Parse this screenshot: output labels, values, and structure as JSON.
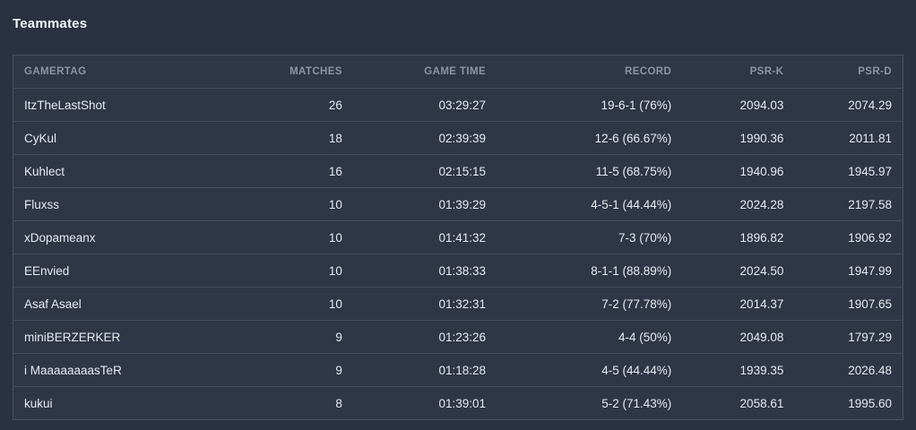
{
  "page": {
    "title": "Teammates"
  },
  "colors": {
    "page_background": "#2a3140",
    "table_background": "#2f3646",
    "table_border": "#4a5365",
    "row_divider": "#454e60",
    "header_text": "#8b95a7",
    "cell_text": "#e7eaef",
    "title_text": "#f4f6f8"
  },
  "table": {
    "columns": [
      {
        "key": "gamertag",
        "label": "GAMERTAG",
        "align": "left"
      },
      {
        "key": "matches",
        "label": "MATCHES",
        "align": "right"
      },
      {
        "key": "game_time",
        "label": "GAME TIME",
        "align": "right"
      },
      {
        "key": "record",
        "label": "RECORD",
        "align": "right"
      },
      {
        "key": "psr_k",
        "label": "PSR-K",
        "align": "right"
      },
      {
        "key": "psr_d",
        "label": "PSR-D",
        "align": "right"
      }
    ],
    "rows": [
      {
        "gamertag": "ItzTheLastShot",
        "matches": "26",
        "game_time": "03:29:27",
        "record": "19-6-1 (76%)",
        "psr_k": "2094.03",
        "psr_d": "2074.29"
      },
      {
        "gamertag": "CyKul",
        "matches": "18",
        "game_time": "02:39:39",
        "record": "12-6 (66.67%)",
        "psr_k": "1990.36",
        "psr_d": "2011.81"
      },
      {
        "gamertag": "Kuhlect",
        "matches": "16",
        "game_time": "02:15:15",
        "record": "11-5 (68.75%)",
        "psr_k": "1940.96",
        "psr_d": "1945.97"
      },
      {
        "gamertag": "Fluxss",
        "matches": "10",
        "game_time": "01:39:29",
        "record": "4-5-1 (44.44%)",
        "psr_k": "2024.28",
        "psr_d": "2197.58"
      },
      {
        "gamertag": "xDopameanx",
        "matches": "10",
        "game_time": "01:41:32",
        "record": "7-3 (70%)",
        "psr_k": "1896.82",
        "psr_d": "1906.92"
      },
      {
        "gamertag": "EEnvied",
        "matches": "10",
        "game_time": "01:38:33",
        "record": "8-1-1 (88.89%)",
        "psr_k": "2024.50",
        "psr_d": "1947.99"
      },
      {
        "gamertag": "Asaf Asael",
        "matches": "10",
        "game_time": "01:32:31",
        "record": "7-2 (77.78%)",
        "psr_k": "2014.37",
        "psr_d": "1907.65"
      },
      {
        "gamertag": "miniBERZERKER",
        "matches": "9",
        "game_time": "01:23:26",
        "record": "4-4 (50%)",
        "psr_k": "2049.08",
        "psr_d": "1797.29"
      },
      {
        "gamertag": "i MaaaaaaaasTeR",
        "matches": "9",
        "game_time": "01:18:28",
        "record": "4-5 (44.44%)",
        "psr_k": "1939.35",
        "psr_d": "2026.48"
      },
      {
        "gamertag": "kukui",
        "matches": "8",
        "game_time": "01:39:01",
        "record": "5-2 (71.43%)",
        "psr_k": "2058.61",
        "psr_d": "1995.60"
      }
    ]
  }
}
